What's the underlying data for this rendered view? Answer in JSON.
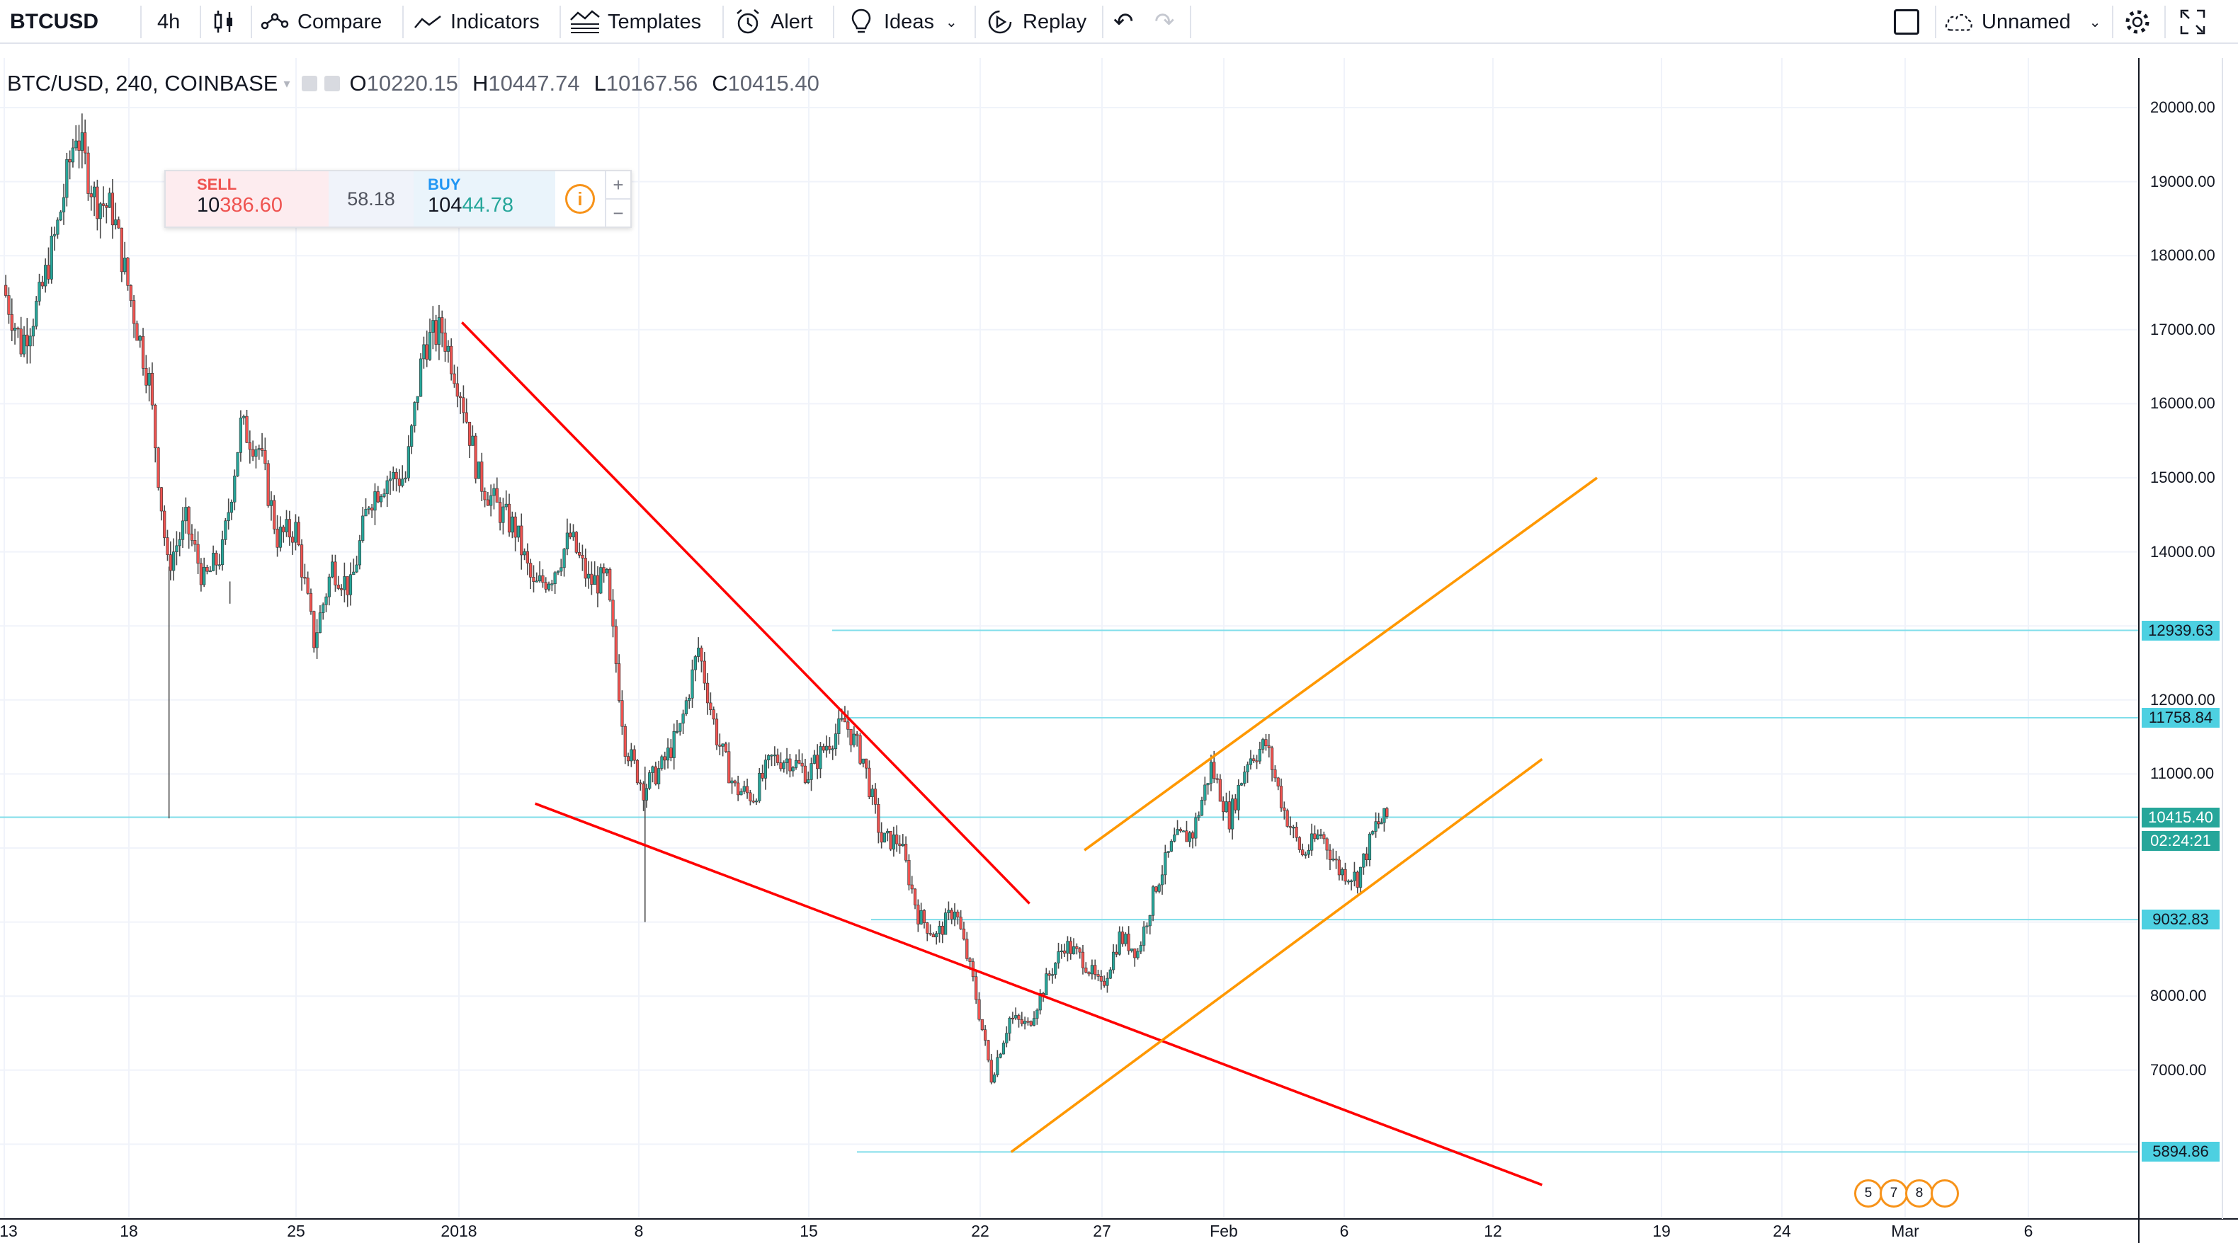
{
  "toolbar": {
    "symbol": "BTCUSD",
    "interval": "4h",
    "compare": "Compare",
    "indicators": "Indicators",
    "templates": "Templates",
    "alert": "Alert",
    "ideas": "Ideas",
    "replay": "Replay",
    "layout_name": "Unnamed"
  },
  "legend": {
    "symbol_desc": "BTC/USD, 240, COINBASE",
    "open_label": "O",
    "open": "10220.15",
    "high_label": "H",
    "high": "10447.74",
    "low_label": "L",
    "low": "10167.56",
    "close_label": "C",
    "close": "10415.40"
  },
  "trade_widget": {
    "sell_label": "SELL",
    "sell_price_prefix": "10",
    "sell_price_big": "386.60",
    "spread": "58.18",
    "buy_label": "BUY",
    "buy_price_prefix": "104",
    "buy_price_big": "44.78",
    "info_icon": "i",
    "plus": "+",
    "minus": "−"
  },
  "price_axis": {
    "ticks": [
      "20000.00",
      "19000.00",
      "18000.00",
      "17000.00",
      "16000.00",
      "15000.00",
      "14000.00",
      "12000.00",
      "11000.00",
      "8000.00",
      "7000.00"
    ],
    "labels": [
      {
        "text": "12939.63",
        "bg": "#4dd0e1",
        "fg": "#131722"
      },
      {
        "text": "11758.84",
        "bg": "#4dd0e1",
        "fg": "#131722"
      },
      {
        "text": "10415.40",
        "bg": "#26a69a",
        "fg": "#ffffff"
      },
      {
        "text": "02:24:21",
        "bg": "#26a69a",
        "fg": "#ffffff"
      },
      {
        "text": "9032.83",
        "bg": "#4dd0e1",
        "fg": "#131722"
      },
      {
        "text": "5894.86",
        "bg": "#4dd0e1",
        "fg": "#131722"
      }
    ]
  },
  "time_axis": {
    "ticks": [
      "13",
      "18",
      "25",
      "2018",
      "8",
      "15",
      "22",
      "27",
      "Feb",
      "6",
      "12",
      "19",
      "24",
      "Mar",
      "6"
    ]
  },
  "events": [
    "5",
    "7",
    "8"
  ],
  "colors": {
    "up": "#26a69a",
    "down": "#ef5350",
    "red_line": "#ff0000",
    "orange_line": "#ff9800",
    "hline": "#80deea"
  },
  "chart_data": {
    "type": "candlestick",
    "title": "",
    "xlabel": "",
    "ylabel": "",
    "ylim": [
      5000,
      20500
    ],
    "last_close": 10415.4,
    "horizontal_levels": [
      12939.63,
      11758.84,
      10415.4,
      9032.83,
      5894.86
    ],
    "price_path": [
      [
        "Dec 13",
        17600
      ],
      [
        "Dec 14",
        16800
      ],
      [
        "Dec 15",
        17400
      ],
      [
        "Dec 16",
        18400
      ],
      [
        "Dec 17",
        19700
      ],
      [
        "Dec 18",
        18800
      ],
      [
        "Dec 19",
        18600
      ],
      [
        "Dec 20",
        17400
      ],
      [
        "Dec 21",
        16300
      ],
      [
        "Dec 22",
        13800
      ],
      [
        "Dec 23",
        14400
      ],
      [
        "Dec 24",
        13600
      ],
      [
        "Dec 25",
        14000
      ],
      [
        "Dec 26",
        15700
      ],
      [
        "Dec 27",
        15400
      ],
      [
        "Dec 28",
        14200
      ],
      [
        "Dec 29",
        14300
      ],
      [
        "Dec 30",
        12800
      ],
      [
        "Dec 31",
        13800
      ],
      [
        "Jan 1",
        13500
      ],
      [
        "Jan 2",
        14700
      ],
      [
        "Jan 3",
        15000
      ],
      [
        "Jan 4",
        15000
      ],
      [
        "Jan 5",
        16800
      ],
      [
        "Jan 6",
        17000
      ],
      [
        "Jan 7",
        16200
      ],
      [
        "Jan 8",
        15000
      ],
      [
        "Jan 9",
        14600
      ],
      [
        "Jan 10",
        14300
      ],
      [
        "Jan 11",
        13500
      ],
      [
        "Jan 12",
        13700
      ],
      [
        "Jan 13",
        14200
      ],
      [
        "Jan 14",
        13600
      ],
      [
        "Jan 15",
        13600
      ],
      [
        "Jan 16",
        11400
      ],
      [
        "Jan 17",
        10800
      ],
      [
        "Jan 18",
        11100
      ],
      [
        "Jan 19",
        11600
      ],
      [
        "Jan 20",
        12700
      ],
      [
        "Jan 21",
        11500
      ],
      [
        "Jan 22",
        10800
      ],
      [
        "Jan 23",
        10700
      ],
      [
        "Jan 24",
        11200
      ],
      [
        "Jan 25",
        11200
      ],
      [
        "Jan 26",
        11000
      ],
      [
        "Jan 27",
        11400
      ],
      [
        "Jan 28",
        11700
      ],
      [
        "Jan 29",
        11200
      ],
      [
        "Jan 30",
        10100
      ],
      [
        "Jan 31",
        10100
      ],
      [
        "Feb 1",
        9100
      ],
      [
        "Feb 2",
        8800
      ],
      [
        "Feb 3",
        9200
      ],
      [
        "Feb 4",
        8200
      ],
      [
        "Feb 5",
        6900
      ],
      [
        "Feb 6",
        7700
      ],
      [
        "Feb 7",
        7600
      ],
      [
        "Feb 8",
        8200
      ],
      [
        "Feb 9",
        8700
      ],
      [
        "Feb 10",
        8500
      ],
      [
        "Feb 11",
        8100
      ],
      [
        "Feb 12",
        8800
      ],
      [
        "Feb 13",
        8600
      ],
      [
        "Feb 14",
        9500
      ],
      [
        "Feb 15",
        10100
      ],
      [
        "Feb 16",
        10200
      ],
      [
        "Feb 17",
        11100
      ],
      [
        "Feb 18",
        10400
      ],
      [
        "Feb 19",
        11200
      ],
      [
        "Feb 20",
        11400
      ],
      [
        "Feb 21",
        10500
      ],
      [
        "Feb 22",
        9900
      ],
      [
        "Feb 23",
        10200
      ],
      [
        "Feb 24",
        9700
      ],
      [
        "Feb 25",
        9600
      ],
      [
        "Feb 26",
        10300
      ],
      [
        "Feb 26b",
        10415.4
      ]
    ],
    "trendlines": [
      {
        "name": "",
        "color": "red",
        "from": [
          "Jan 7",
          17100
        ],
        "to": [
          "Feb 7",
          9250
        ]
      },
      {
        "name": "",
        "color": "red",
        "from": [
          "Jan 11",
          10600
        ],
        "to": [
          "Mar 7",
          5450
        ]
      },
      {
        "name": "",
        "color": "orange",
        "from": [
          "Feb 6",
          5894.86
        ],
        "to": [
          "Mar 7",
          11200
        ]
      },
      {
        "name": "",
        "color": "orange",
        "from": [
          "Feb 10",
          9970
        ],
        "to": [
          "Mar 10",
          15000
        ]
      }
    ]
  }
}
